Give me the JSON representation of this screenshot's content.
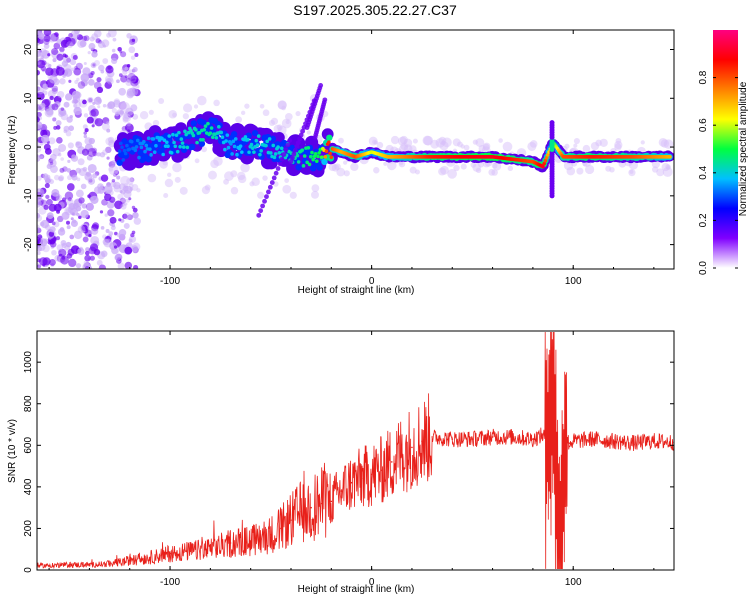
{
  "title": "S197.2025.305.22.27.C37",
  "chart_data": [
    {
      "type": "heatmap",
      "name": "spectrogram",
      "xlabel": "Height of straight line (km)",
      "ylabel": "Frequency (Hz)",
      "xlim": [
        -166,
        150
      ],
      "ylim": [
        -25,
        24
      ],
      "xticks": [
        -100,
        0,
        100
      ],
      "yticks": [
        -20,
        -10,
        0,
        10,
        20
      ],
      "xtick_labels": [
        "-100",
        "0",
        "100"
      ],
      "ytick_labels": [
        "-20",
        "-10",
        "0",
        "10",
        "20"
      ],
      "colorbar": {
        "label": "Normalized spectral amplitude",
        "range": [
          0,
          1
        ],
        "ticks": [
          0.0,
          0.2,
          0.4,
          0.6,
          0.8
        ],
        "tick_labels": [
          "0.0",
          "0.2",
          "0.4",
          "0.6",
          "0.8"
        ],
        "colors": [
          "#ffffff",
          "#8000ff",
          "#0000ff",
          "#00c0ff",
          "#00ff40",
          "#ffff00",
          "#ff8000",
          "#ff0000",
          "#ff0080"
        ]
      },
      "ridge": [
        {
          "x": -125,
          "y": -1,
          "amp": 0.3
        },
        {
          "x": -110,
          "y": 0,
          "amp": 0.35
        },
        {
          "x": -95,
          "y": 1,
          "amp": 0.4
        },
        {
          "x": -80,
          "y": 4,
          "amp": 0.45
        },
        {
          "x": -70,
          "y": 0,
          "amp": 0.35
        },
        {
          "x": -60,
          "y": 1,
          "amp": 0.4
        },
        {
          "x": -45,
          "y": -1,
          "amp": 0.4
        },
        {
          "x": -35,
          "y": -2,
          "amp": 0.45
        },
        {
          "x": -25,
          "y": -2,
          "amp": 0.5
        },
        {
          "x": -22,
          "y": 0,
          "amp": 0.85
        },
        {
          "x": -15,
          "y": -1,
          "amp": 0.7
        },
        {
          "x": -8,
          "y": -2,
          "amp": 0.8
        },
        {
          "x": 0,
          "y": -1,
          "amp": 0.6
        },
        {
          "x": 8,
          "y": -2,
          "amp": 0.7
        },
        {
          "x": 17,
          "y": -2,
          "amp": 0.75
        },
        {
          "x": 30,
          "y": -2,
          "amp": 0.85
        },
        {
          "x": 60,
          "y": -2,
          "amp": 0.9
        },
        {
          "x": 80,
          "y": -3,
          "amp": 0.8
        },
        {
          "x": 85,
          "y": -4,
          "amp": 0.9
        },
        {
          "x": 90,
          "y": 1,
          "amp": 0.5
        },
        {
          "x": 95,
          "y": -2,
          "amp": 0.8
        },
        {
          "x": 110,
          "y": -2,
          "amp": 0.85
        },
        {
          "x": 130,
          "y": -2,
          "amp": 0.8
        },
        {
          "x": 148,
          "y": -2,
          "amp": 0.7
        }
      ]
    },
    {
      "type": "line",
      "name": "snr",
      "xlabel": "Height of straight line (km)",
      "ylabel": "SNR (10 * v/v)",
      "xlim": [
        -166,
        150
      ],
      "ylim": [
        0,
        1150
      ],
      "xticks": [
        -100,
        0,
        100
      ],
      "yticks": [
        0,
        200,
        400,
        600,
        800,
        1000
      ],
      "xtick_labels": [
        "-100",
        "0",
        "100"
      ],
      "ytick_labels": [
        "0",
        "200",
        "400",
        "600",
        "800",
        "1000"
      ],
      "series": [
        {
          "name": "SNR",
          "color": "#e8201a",
          "x": [
            -166,
            -150,
            -140,
            -130,
            -120,
            -110,
            -100,
            -90,
            -80,
            -70,
            -60,
            -50,
            -45,
            -40,
            -35,
            -30,
            -25,
            -20,
            -15,
            -10,
            -5,
            0,
            5,
            10,
            15,
            20,
            25,
            30,
            40,
            50,
            60,
            70,
            80,
            85,
            88,
            90,
            92,
            94,
            96,
            98,
            100,
            110,
            120,
            130,
            140,
            150
          ],
          "y": [
            20,
            25,
            25,
            30,
            45,
            60,
            80,
            90,
            100,
            130,
            140,
            170,
            200,
            240,
            280,
            300,
            320,
            330,
            380,
            420,
            440,
            460,
            480,
            520,
            560,
            590,
            620,
            640,
            630,
            630,
            640,
            640,
            630,
            650,
            620,
            900,
            300,
            80,
            640,
            610,
            620,
            630,
            620,
            610,
            620,
            615
          ]
        }
      ]
    }
  ]
}
